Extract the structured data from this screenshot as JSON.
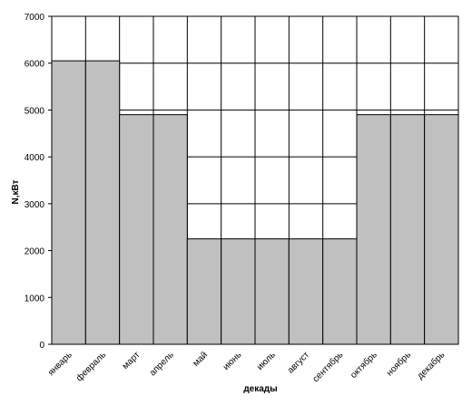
{
  "chart_data": {
    "type": "bar",
    "categories": [
      "январь",
      "февраль",
      "март",
      "апрель",
      "май",
      "июнь",
      "июль",
      "август",
      "сентябрь",
      "октябрь",
      "ноябрь",
      "декабрь"
    ],
    "values": [
      6050,
      6050,
      4900,
      4900,
      2250,
      2250,
      2250,
      2250,
      2250,
      4900,
      4900,
      4900
    ],
    "color": "#c0c0c0",
    "y_label": "N,кВт",
    "x_label": "декады",
    "ylim": [
      0,
      7000
    ],
    "yticks": [
      0,
      1000,
      2000,
      3000,
      4000,
      5000,
      6000,
      7000
    ],
    "grid": true
  }
}
